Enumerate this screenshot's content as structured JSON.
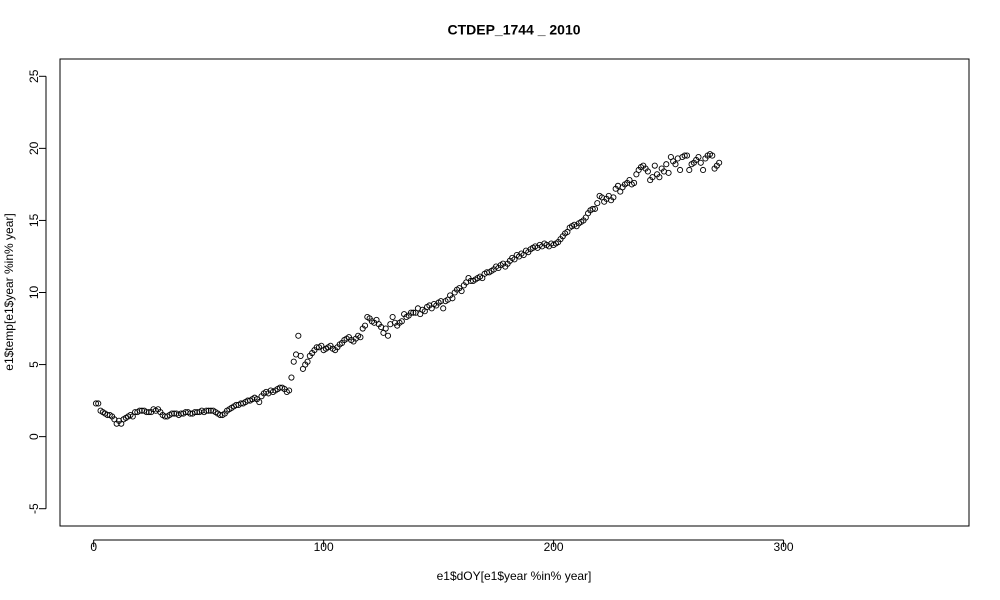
{
  "chart_data": {
    "type": "scatter",
    "title": "CTDEP_1744 _ 2010",
    "x_label": "e1$dOY[e1$year %in% year]",
    "y_label": "e1$temp[e1$year %in% year]",
    "xlim": [
      -14.64,
      380.64
    ],
    "ylim": [
      -6.2,
      26.2
    ],
    "xticks": [
      0,
      100,
      200,
      300
    ],
    "yticks": [
      -5,
      0,
      5,
      10,
      15,
      20,
      25
    ],
    "color": "#000000",
    "x": [
      1,
      2,
      3,
      4,
      5,
      6,
      7,
      8,
      9,
      10,
      11,
      12,
      13,
      14,
      15,
      16,
      17,
      18,
      19,
      20,
      21,
      22,
      23,
      24,
      25,
      26,
      27,
      28,
      29,
      30,
      31,
      32,
      33,
      34,
      35,
      36,
      37,
      38,
      39,
      40,
      41,
      42,
      43,
      44,
      45,
      46,
      47,
      48,
      49,
      50,
      51,
      52,
      53,
      54,
      55,
      56,
      57,
      58,
      59,
      60,
      61,
      62,
      63,
      64,
      65,
      66,
      67,
      68,
      69,
      70,
      71,
      72,
      73,
      74,
      75,
      76,
      77,
      78,
      79,
      80,
      81,
      82,
      83,
      84,
      85,
      86,
      87,
      88,
      89,
      90,
      91,
      92,
      93,
      94,
      95,
      96,
      97,
      98,
      99,
      100,
      101,
      102,
      103,
      104,
      105,
      106,
      107,
      108,
      109,
      110,
      111,
      112,
      113,
      114,
      115,
      116,
      117,
      118,
      119,
      120,
      121,
      122,
      123,
      124,
      125,
      126,
      127,
      128,
      129,
      130,
      131,
      132,
      133,
      134,
      135,
      136,
      137,
      138,
      139,
      140,
      141,
      142,
      143,
      144,
      145,
      146,
      147,
      148,
      149,
      150,
      151,
      152,
      153,
      154,
      155,
      156,
      157,
      158,
      159,
      160,
      161,
      162,
      163,
      164,
      165,
      166,
      167,
      168,
      169,
      170,
      171,
      172,
      173,
      174,
      175,
      176,
      177,
      178,
      179,
      180,
      181,
      182,
      183,
      184,
      185,
      186,
      187,
      188,
      189,
      190,
      191,
      192,
      193,
      194,
      195,
      196,
      197,
      198,
      199,
      200,
      201,
      202,
      203,
      204,
      205,
      206,
      207,
      208,
      209,
      210,
      211,
      212,
      213,
      214,
      215,
      216,
      217,
      218,
      219,
      220,
      221,
      222,
      223,
      224,
      225,
      226,
      227,
      228,
      229,
      230,
      231,
      232,
      233,
      234,
      235,
      236,
      237,
      238,
      239,
      240,
      241,
      242,
      243,
      244,
      245,
      246,
      247,
      248,
      249,
      250,
      251,
      252,
      253,
      254,
      255,
      256,
      257,
      258,
      259,
      260,
      261,
      262,
      263,
      264,
      265,
      266,
      267,
      268,
      269,
      270,
      271,
      272
    ],
    "values": [
      2.3,
      2.3,
      1.8,
      1.7,
      1.6,
      1.5,
      1.5,
      1.4,
      1.2,
      0.9,
      1.1,
      0.9,
      1.2,
      1.3,
      1.4,
      1.5,
      1.4,
      1.7,
      1.7,
      1.8,
      1.8,
      1.8,
      1.7,
      1.7,
      1.7,
      1.9,
      1.8,
      1.9,
      1.7,
      1.5,
      1.4,
      1.4,
      1.5,
      1.6,
      1.6,
      1.6,
      1.5,
      1.6,
      1.6,
      1.7,
      1.7,
      1.6,
      1.6,
      1.7,
      1.7,
      1.7,
      1.8,
      1.7,
      1.8,
      1.8,
      1.8,
      1.8,
      1.7,
      1.6,
      1.5,
      1.5,
      1.6,
      1.8,
      1.9,
      2.0,
      2.1,
      2.2,
      2.2,
      2.3,
      2.3,
      2.4,
      2.5,
      2.5,
      2.6,
      2.7,
      2.6,
      2.4,
      2.8,
      3.0,
      3.1,
      3.0,
      3.2,
      3.1,
      3.2,
      3.3,
      3.4,
      3.4,
      3.3,
      3.1,
      3.2,
      4.1,
      5.2,
      5.7,
      7.0,
      5.6,
      4.7,
      5.0,
      5.2,
      5.6,
      5.8,
      6.0,
      6.2,
      6.2,
      6.3,
      6.0,
      6.1,
      6.2,
      6.3,
      6.1,
      6.0,
      6.2,
      6.4,
      6.5,
      6.7,
      6.8,
      6.9,
      6.7,
      6.6,
      6.8,
      7.0,
      6.9,
      7.5,
      7.7,
      8.3,
      8.2,
      8.0,
      7.9,
      8.1,
      7.8,
      7.6,
      7.2,
      7.5,
      7.0,
      7.8,
      8.3,
      7.9,
      7.7,
      7.9,
      8.0,
      8.5,
      8.3,
      8.4,
      8.6,
      8.6,
      8.6,
      8.9,
      8.5,
      8.8,
      8.7,
      9.0,
      9.1,
      8.9,
      9.2,
      9.1,
      9.3,
      9.4,
      8.9,
      9.4,
      9.5,
      9.8,
      9.6,
      10.0,
      10.2,
      10.3,
      10.1,
      10.5,
      10.7,
      11.0,
      10.8,
      10.8,
      10.9,
      11.0,
      11.1,
      11.0,
      11.3,
      11.4,
      11.4,
      11.5,
      11.6,
      11.8,
      11.7,
      11.9,
      12.0,
      11.8,
      12.0,
      12.2,
      12.4,
      12.3,
      12.6,
      12.5,
      12.7,
      12.6,
      12.9,
      12.8,
      13.0,
      13.1,
      13.2,
      13.1,
      13.3,
      13.2,
      13.4,
      13.3,
      13.2,
      13.4,
      13.3,
      13.4,
      13.5,
      13.7,
      13.9,
      14.1,
      14.2,
      14.5,
      14.6,
      14.7,
      14.6,
      14.8,
      14.9,
      15.0,
      15.2,
      15.5,
      15.7,
      15.8,
      15.8,
      16.2,
      16.7,
      16.6,
      16.3,
      16.5,
      16.7,
      16.4,
      16.6,
      17.2,
      17.4,
      17.0,
      17.3,
      17.5,
      17.6,
      17.8,
      17.5,
      17.6,
      18.2,
      18.5,
      18.7,
      18.8,
      18.6,
      18.4,
      17.8,
      18.0,
      18.8,
      18.2,
      18.0,
      18.6,
      18.4,
      18.9,
      18.3,
      19.4,
      19.1,
      18.9,
      19.3,
      18.5,
      19.4,
      19.5,
      19.5,
      18.5,
      18.9,
      19.0,
      19.2,
      19.4,
      19.0,
      18.5,
      19.3,
      19.5,
      19.6,
      19.5,
      18.6,
      18.8,
      19.0
    ]
  }
}
